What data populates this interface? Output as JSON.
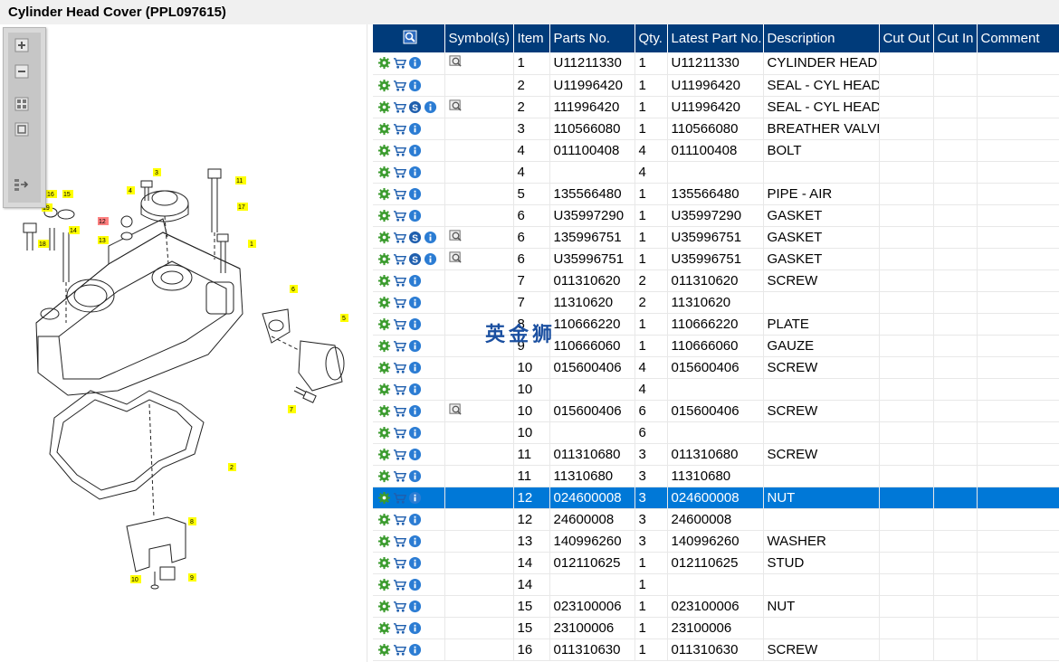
{
  "window": {
    "title": "Cylinder Head Cover (PPL097615)"
  },
  "toolbar": {
    "zoom_in": "zoom-in",
    "zoom_out": "zoom-out",
    "fit": "fit",
    "actual": "actual-size",
    "export": "export"
  },
  "watermark": "英金狮",
  "columns": [
    "",
    "Symbol(s)",
    "Item",
    "Parts No.",
    "Qty.",
    "Latest Part No.",
    "Description",
    "Cut Out",
    "Cut In",
    "Comment"
  ],
  "rows": [
    {
      "s": false,
      "i": true,
      "sym": true,
      "item": "1",
      "part": "U11211330",
      "qty": "1",
      "latest": "U11211330",
      "desc": "CYLINDER HEAD C",
      "sel": false
    },
    {
      "s": false,
      "i": true,
      "sym": false,
      "item": "2",
      "part": "U11996420",
      "qty": "1",
      "latest": "U11996420",
      "desc": "SEAL - CYL HEAD C",
      "sel": false
    },
    {
      "s": true,
      "i": true,
      "sym": true,
      "item": "2",
      "part": "111996420",
      "qty": "1",
      "latest": "U11996420",
      "desc": "SEAL - CYL HEAD C",
      "sel": false
    },
    {
      "s": false,
      "i": true,
      "sym": false,
      "item": "3",
      "part": "110566080",
      "qty": "1",
      "latest": "110566080",
      "desc": "BREATHER VALVE",
      "sel": false
    },
    {
      "s": false,
      "i": true,
      "sym": false,
      "item": "4",
      "part": "011100408",
      "qty": "4",
      "latest": "011100408",
      "desc": "BOLT",
      "sel": false
    },
    {
      "s": false,
      "i": true,
      "sym": false,
      "item": "4",
      "part": "",
      "qty": "4",
      "latest": "",
      "desc": "",
      "sel": false
    },
    {
      "s": false,
      "i": true,
      "sym": false,
      "item": "5",
      "part": "135566480",
      "qty": "1",
      "latest": "135566480",
      "desc": "PIPE - AIR",
      "sel": false
    },
    {
      "s": false,
      "i": true,
      "sym": false,
      "item": "6",
      "part": "U35997290",
      "qty": "1",
      "latest": "U35997290",
      "desc": "GASKET",
      "sel": false
    },
    {
      "s": true,
      "i": true,
      "sym": true,
      "item": "6",
      "part": "135996751",
      "qty": "1",
      "latest": "U35996751",
      "desc": "GASKET",
      "sel": false
    },
    {
      "s": true,
      "i": true,
      "sym": true,
      "item": "6",
      "part": "U35996751",
      "qty": "1",
      "latest": "U35996751",
      "desc": "GASKET",
      "sel": false
    },
    {
      "s": false,
      "i": true,
      "sym": false,
      "item": "7",
      "part": "011310620",
      "qty": "2",
      "latest": "011310620",
      "desc": "SCREW",
      "sel": false
    },
    {
      "s": false,
      "i": true,
      "sym": false,
      "item": "7",
      "part": "11310620",
      "qty": "2",
      "latest": "11310620",
      "desc": "",
      "sel": false
    },
    {
      "s": false,
      "i": true,
      "sym": false,
      "item": "8",
      "part": "110666220",
      "qty": "1",
      "latest": "110666220",
      "desc": "PLATE",
      "sel": false
    },
    {
      "s": false,
      "i": true,
      "sym": false,
      "item": "9",
      "part": "110666060",
      "qty": "1",
      "latest": "110666060",
      "desc": "GAUZE",
      "sel": false
    },
    {
      "s": false,
      "i": true,
      "sym": false,
      "item": "10",
      "part": "015600406",
      "qty": "4",
      "latest": "015600406",
      "desc": "SCREW",
      "sel": false
    },
    {
      "s": false,
      "i": true,
      "sym": false,
      "item": "10",
      "part": "",
      "qty": "4",
      "latest": "",
      "desc": "",
      "sel": false
    },
    {
      "s": false,
      "i": true,
      "sym": true,
      "item": "10",
      "part": "015600406",
      "qty": "6",
      "latest": "015600406",
      "desc": "SCREW",
      "sel": false
    },
    {
      "s": false,
      "i": true,
      "sym": false,
      "item": "10",
      "part": "",
      "qty": "6",
      "latest": "",
      "desc": "",
      "sel": false
    },
    {
      "s": false,
      "i": true,
      "sym": false,
      "item": "11",
      "part": "011310680",
      "qty": "3",
      "latest": "011310680",
      "desc": "SCREW",
      "sel": false
    },
    {
      "s": false,
      "i": true,
      "sym": false,
      "item": "11",
      "part": "11310680",
      "qty": "3",
      "latest": "11310680",
      "desc": "",
      "sel": false
    },
    {
      "s": false,
      "i": true,
      "sym": false,
      "item": "12",
      "part": "024600008",
      "qty": "3",
      "latest": "024600008",
      "desc": "NUT",
      "sel": true
    },
    {
      "s": false,
      "i": true,
      "sym": false,
      "item": "12",
      "part": "24600008",
      "qty": "3",
      "latest": "24600008",
      "desc": "",
      "sel": false
    },
    {
      "s": false,
      "i": true,
      "sym": false,
      "item": "13",
      "part": "140996260",
      "qty": "3",
      "latest": "140996260",
      "desc": "WASHER",
      "sel": false
    },
    {
      "s": false,
      "i": true,
      "sym": false,
      "item": "14",
      "part": "012110625",
      "qty": "1",
      "latest": "012110625",
      "desc": "STUD",
      "sel": false
    },
    {
      "s": false,
      "i": true,
      "sym": false,
      "item": "14",
      "part": "",
      "qty": "1",
      "latest": "",
      "desc": "",
      "sel": false
    },
    {
      "s": false,
      "i": true,
      "sym": false,
      "item": "15",
      "part": "023100006",
      "qty": "1",
      "latest": "023100006",
      "desc": "NUT",
      "sel": false
    },
    {
      "s": false,
      "i": true,
      "sym": false,
      "item": "15",
      "part": "23100006",
      "qty": "1",
      "latest": "23100006",
      "desc": "",
      "sel": false
    },
    {
      "s": false,
      "i": true,
      "sym": false,
      "item": "16",
      "part": "011310630",
      "qty": "1",
      "latest": "011310630",
      "desc": "SCREW",
      "sel": false
    }
  ],
  "diagram": {
    "callouts": [
      "1",
      "2",
      "3",
      "4",
      "5",
      "6",
      "7",
      "8",
      "9",
      "10",
      "11",
      "12",
      "13",
      "14",
      "15",
      "16",
      "17",
      "18",
      "19"
    ],
    "highlight_color": "#ffff00",
    "selected_color": "#ff8080"
  },
  "colors": {
    "header": "#003b7a",
    "selected_row": "#0078d7",
    "gear": "#3a9b2d",
    "cart": "#1f5fae",
    "info": "#2b7cd3"
  }
}
